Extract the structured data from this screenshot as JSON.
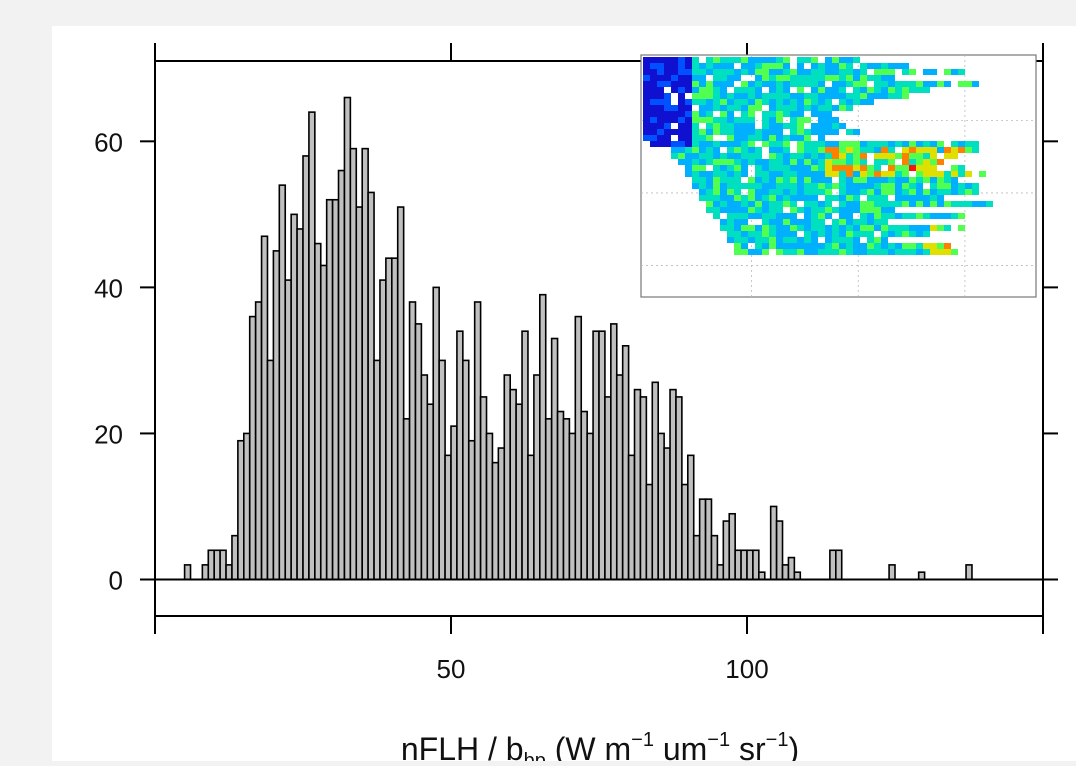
{
  "chart_data": {
    "type": "bar",
    "title": "",
    "xlabel_parts": {
      "main": "nFLH / b",
      "sub": "bp",
      "rest_a": " (W m",
      "sup1": "−1",
      "rest_b": " um",
      "sup2": "−1",
      "rest_c": " sr",
      "sup3": "−1",
      "close": ")"
    },
    "ylabel": "",
    "xlim": [
      0,
      150
    ],
    "ylim": [
      -5,
      71
    ],
    "x_ticks": [
      50,
      100
    ],
    "y_ticks": [
      0,
      20,
      40,
      60
    ],
    "bin_width": 1,
    "bins": [
      {
        "x": 5,
        "y": 2
      },
      {
        "x": 8,
        "y": 2
      },
      {
        "x": 9,
        "y": 4
      },
      {
        "x": 10,
        "y": 4
      },
      {
        "x": 11,
        "y": 4
      },
      {
        "x": 12,
        "y": 2
      },
      {
        "x": 13,
        "y": 6
      },
      {
        "x": 14,
        "y": 19
      },
      {
        "x": 15,
        "y": 20
      },
      {
        "x": 16,
        "y": 36
      },
      {
        "x": 17,
        "y": 38
      },
      {
        "x": 18,
        "y": 47
      },
      {
        "x": 19,
        "y": 30
      },
      {
        "x": 20,
        "y": 45
      },
      {
        "x": 21,
        "y": 54
      },
      {
        "x": 22,
        "y": 41
      },
      {
        "x": 23,
        "y": 50
      },
      {
        "x": 24,
        "y": 48
      },
      {
        "x": 25,
        "y": 58
      },
      {
        "x": 26,
        "y": 64
      },
      {
        "x": 27,
        "y": 46
      },
      {
        "x": 28,
        "y": 43
      },
      {
        "x": 29,
        "y": 52
      },
      {
        "x": 30,
        "y": 52
      },
      {
        "x": 31,
        "y": 56
      },
      {
        "x": 32,
        "y": 66
      },
      {
        "x": 33,
        "y": 59
      },
      {
        "x": 34,
        "y": 51
      },
      {
        "x": 35,
        "y": 59
      },
      {
        "x": 36,
        "y": 53
      },
      {
        "x": 37,
        "y": 30
      },
      {
        "x": 38,
        "y": 41
      },
      {
        "x": 39,
        "y": 44
      },
      {
        "x": 40,
        "y": 44
      },
      {
        "x": 41,
        "y": 51
      },
      {
        "x": 42,
        "y": 22
      },
      {
        "x": 43,
        "y": 38
      },
      {
        "x": 44,
        "y": 35
      },
      {
        "x": 45,
        "y": 28
      },
      {
        "x": 46,
        "y": 24
      },
      {
        "x": 47,
        "y": 40
      },
      {
        "x": 48,
        "y": 30
      },
      {
        "x": 49,
        "y": 17
      },
      {
        "x": 50,
        "y": 21
      },
      {
        "x": 51,
        "y": 34
      },
      {
        "x": 52,
        "y": 30
      },
      {
        "x": 53,
        "y": 19
      },
      {
        "x": 54,
        "y": 38
      },
      {
        "x": 55,
        "y": 25
      },
      {
        "x": 56,
        "y": 20
      },
      {
        "x": 57,
        "y": 16
      },
      {
        "x": 58,
        "y": 18
      },
      {
        "x": 59,
        "y": 28
      },
      {
        "x": 60,
        "y": 26
      },
      {
        "x": 61,
        "y": 24
      },
      {
        "x": 62,
        "y": 34
      },
      {
        "x": 63,
        "y": 17
      },
      {
        "x": 64,
        "y": 28
      },
      {
        "x": 65,
        "y": 39
      },
      {
        "x": 66,
        "y": 22
      },
      {
        "x": 67,
        "y": 33
      },
      {
        "x": 68,
        "y": 23
      },
      {
        "x": 69,
        "y": 22
      },
      {
        "x": 70,
        "y": 20
      },
      {
        "x": 71,
        "y": 36
      },
      {
        "x": 72,
        "y": 23
      },
      {
        "x": 73,
        "y": 20
      },
      {
        "x": 74,
        "y": 34
      },
      {
        "x": 75,
        "y": 34
      },
      {
        "x": 76,
        "y": 25
      },
      {
        "x": 77,
        "y": 35
      },
      {
        "x": 78,
        "y": 28
      },
      {
        "x": 79,
        "y": 32
      },
      {
        "x": 80,
        "y": 17
      },
      {
        "x": 81,
        "y": 26
      },
      {
        "x": 82,
        "y": 25
      },
      {
        "x": 83,
        "y": 13
      },
      {
        "x": 84,
        "y": 27
      },
      {
        "x": 85,
        "y": 20
      },
      {
        "x": 86,
        "y": 18
      },
      {
        "x": 87,
        "y": 26
      },
      {
        "x": 88,
        "y": 25
      },
      {
        "x": 89,
        "y": 13
      },
      {
        "x": 90,
        "y": 17
      },
      {
        "x": 91,
        "y": 6
      },
      {
        "x": 92,
        "y": 11
      },
      {
        "x": 93,
        "y": 11
      },
      {
        "x": 94,
        "y": 6
      },
      {
        "x": 95,
        "y": 2
      },
      {
        "x": 96,
        "y": 8
      },
      {
        "x": 97,
        "y": 9
      },
      {
        "x": 98,
        "y": 4
      },
      {
        "x": 99,
        "y": 4
      },
      {
        "x": 100,
        "y": 4
      },
      {
        "x": 101,
        "y": 4
      },
      {
        "x": 102,
        "y": 1
      },
      {
        "x": 104,
        "y": 10
      },
      {
        "x": 105,
        "y": 8
      },
      {
        "x": 106,
        "y": 2
      },
      {
        "x": 107,
        "y": 3
      },
      {
        "x": 108,
        "y": 1
      },
      {
        "x": 114,
        "y": 4
      },
      {
        "x": 115,
        "y": 4
      },
      {
        "x": 124,
        "y": 2
      },
      {
        "x": 129,
        "y": 1
      },
      {
        "x": 137,
        "y": 2
      }
    ]
  },
  "colors": {
    "bar_fill": "#c0c0c0",
    "bar_stroke": "#000000",
    "axis": "#000000",
    "page_bg": "#f2f2f2",
    "panel_bg": "#ffffff",
    "inset_palette": [
      "#1010d0",
      "#0050ff",
      "#00b0ff",
      "#00e0c0",
      "#50ff50",
      "#e0e000",
      "#ff8000",
      "#ff1010"
    ]
  },
  "inset": {
    "type": "heatmap",
    "grid": "dashed",
    "colormap": "jet"
  }
}
